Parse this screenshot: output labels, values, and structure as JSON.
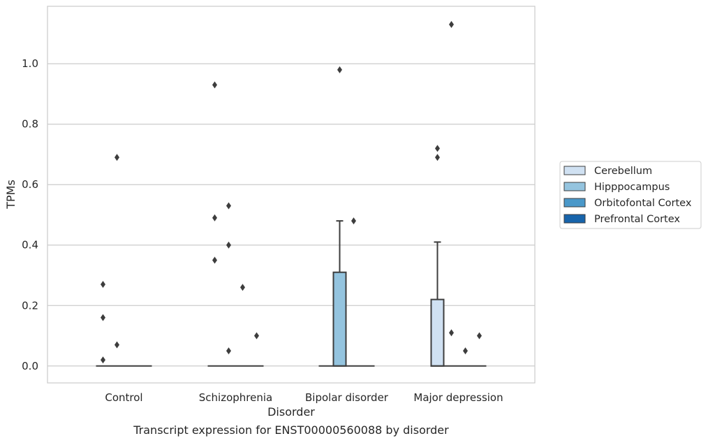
{
  "caption": "Transcript expression for ENST00000560088 by disorder",
  "chart_data": {
    "type": "box",
    "xlabel": "Disorder",
    "ylabel": "TPMs",
    "categories": [
      "Control",
      "Schizophrenia",
      "Bipolar disorder",
      "Major depression"
    ],
    "ylim": [
      -0.056,
      1.19
    ],
    "yticks": [
      0.0,
      0.2,
      0.4,
      0.6,
      0.8,
      1.0
    ],
    "ytick_labels": [
      "0.0",
      "0.2",
      "0.4",
      "0.6",
      "0.8",
      "1.0"
    ],
    "grid": "horizontal",
    "legend_placement": "right",
    "series": [
      {
        "name": "Cerebellum",
        "color": "#d0e1f2",
        "boxes": [
          {
            "category": "Control",
            "q1": 0,
            "median": 0,
            "q3": 0,
            "whisker_low": 0,
            "whisker_high": 0,
            "outliers": [
              0.27,
              0.16,
              0.02
            ]
          },
          {
            "category": "Schizophrenia",
            "q1": 0,
            "median": 0,
            "q3": 0,
            "whisker_low": 0,
            "whisker_high": 0,
            "outliers": [
              0.93,
              0.49,
              0.35
            ]
          },
          {
            "category": "Bipolar disorder",
            "q1": 0,
            "median": 0,
            "q3": 0,
            "whisker_low": 0,
            "whisker_high": 0,
            "outliers": []
          },
          {
            "category": "Major depression",
            "q1": 0,
            "median": 0,
            "q3": 0.22,
            "whisker_low": 0,
            "whisker_high": 0.41,
            "outliers": [
              0.72,
              0.69
            ]
          }
        ]
      },
      {
        "name": "Hipppocampus",
        "color": "#94c4df",
        "boxes": [
          {
            "category": "Control",
            "q1": 0,
            "median": 0,
            "q3": 0,
            "whisker_low": 0,
            "whisker_high": 0,
            "outliers": [
              0.69,
              0.07
            ]
          },
          {
            "category": "Schizophrenia",
            "q1": 0,
            "median": 0,
            "q3": 0,
            "whisker_low": 0,
            "whisker_high": 0,
            "outliers": [
              0.53,
              0.4,
              0.05
            ]
          },
          {
            "category": "Bipolar disorder",
            "q1": 0,
            "median": 0,
            "q3": 0.31,
            "whisker_low": 0,
            "whisker_high": 0.48,
            "outliers": [
              0.98
            ]
          },
          {
            "category": "Major depression",
            "q1": 0,
            "median": 0,
            "q3": 0,
            "whisker_low": 0,
            "whisker_high": 0,
            "outliers": [
              1.13,
              0.11
            ]
          }
        ]
      },
      {
        "name": "Orbitofontal Cortex",
        "color": "#4a98c9",
        "boxes": [
          {
            "category": "Control",
            "q1": 0,
            "median": 0,
            "q3": 0,
            "whisker_low": 0,
            "whisker_high": 0,
            "outliers": []
          },
          {
            "category": "Schizophrenia",
            "q1": 0,
            "median": 0,
            "q3": 0,
            "whisker_low": 0,
            "whisker_high": 0,
            "outliers": [
              0.26
            ]
          },
          {
            "category": "Bipolar disorder",
            "q1": 0,
            "median": 0,
            "q3": 0,
            "whisker_low": 0,
            "whisker_high": 0,
            "outliers": [
              0.48
            ]
          },
          {
            "category": "Major depression",
            "q1": 0,
            "median": 0,
            "q3": 0,
            "whisker_low": 0,
            "whisker_high": 0,
            "outliers": [
              0.05
            ]
          }
        ]
      },
      {
        "name": "Prefrontal Cortex",
        "color": "#1764ab",
        "boxes": [
          {
            "category": "Control",
            "q1": 0,
            "median": 0,
            "q3": 0,
            "whisker_low": 0,
            "whisker_high": 0,
            "outliers": []
          },
          {
            "category": "Schizophrenia",
            "q1": 0,
            "median": 0,
            "q3": 0,
            "whisker_low": 0,
            "whisker_high": 0,
            "outliers": [
              0.1
            ]
          },
          {
            "category": "Bipolar disorder",
            "q1": 0,
            "median": 0,
            "q3": 0,
            "whisker_low": 0,
            "whisker_high": 0,
            "outliers": []
          },
          {
            "category": "Major depression",
            "q1": 0,
            "median": 0,
            "q3": 0,
            "whisker_low": 0,
            "whisker_high": 0,
            "outliers": [
              0.1
            ]
          }
        ]
      }
    ]
  }
}
